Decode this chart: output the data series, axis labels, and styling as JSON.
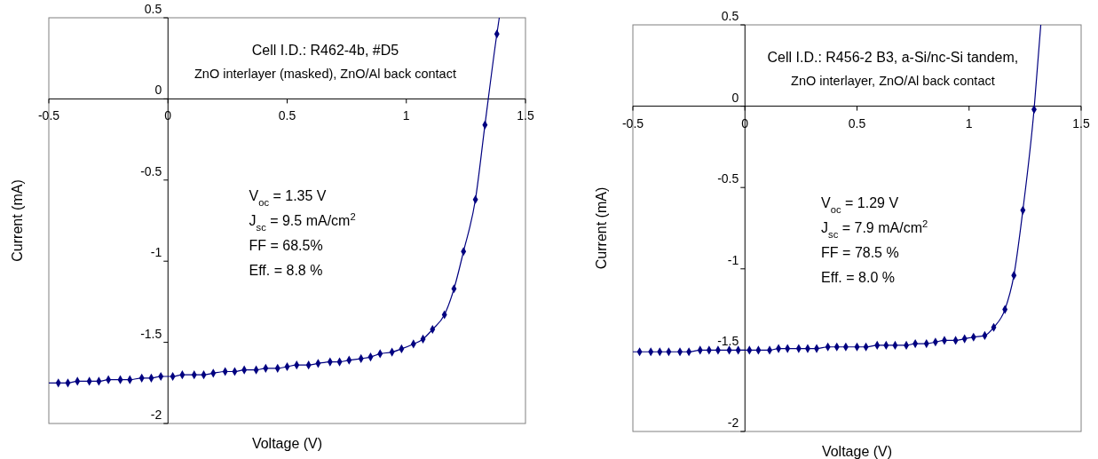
{
  "chart_data": [
    {
      "type": "scatter",
      "title": "Cell I.D.: R462-4b, #D5",
      "subtitle": "ZnO interlayer (masked), ZnO/Al back contact",
      "xlabel": "Voltage (V)",
      "ylabel": "Current (mA)",
      "annotations": [
        "V$_{oc}$ = 1.35 V",
        "J$_{sc}$ = 9.5 mA/cm$^{2}$",
        "FF = 68.5%",
        "Eff. = 8.8 %"
      ],
      "xlim": [
        -0.5,
        1.5
      ],
      "xticks": [
        -0.5,
        0,
        0.5,
        1,
        1.5
      ],
      "ylim": [
        -2,
        0.5
      ],
      "yticks": [
        -2,
        -1.5,
        -1,
        -0.5,
        0,
        0.5
      ],
      "grid": false,
      "series": [
        {
          "type": "line",
          "color": "#000080",
          "marker": "none",
          "x": [
            -0.5,
            -0.46,
            -0.42,
            -0.38,
            -0.33,
            -0.29,
            -0.25,
            -0.2,
            -0.16,
            -0.11,
            -0.07,
            -0.03,
            0.02,
            0.06,
            0.11,
            0.15,
            0.19,
            0.24,
            0.28,
            0.32,
            0.37,
            0.41,
            0.46,
            0.5,
            0.54,
            0.59,
            0.63,
            0.68,
            0.72,
            0.76,
            0.81,
            0.85,
            0.89,
            0.94,
            0.98,
            1.03,
            1.07,
            1.11,
            1.16,
            1.2,
            1.24,
            1.29,
            1.33,
            1.38,
            1.39
          ],
          "values": [
            -1.75,
            -1.75,
            -1.75,
            -1.74,
            -1.74,
            -1.74,
            -1.73,
            -1.73,
            -1.73,
            -1.72,
            -1.72,
            -1.71,
            -1.71,
            -1.7,
            -1.7,
            -1.7,
            -1.69,
            -1.68,
            -1.68,
            -1.67,
            -1.67,
            -1.66,
            -1.66,
            -1.65,
            -1.64,
            -1.64,
            -1.63,
            -1.62,
            -1.62,
            -1.61,
            -1.6,
            -1.59,
            -1.57,
            -1.56,
            -1.54,
            -1.51,
            -1.48,
            -1.42,
            -1.33,
            -1.17,
            -0.94,
            -0.62,
            -0.16,
            0.4,
            0.5
          ]
        },
        {
          "type": "scatter",
          "color": "#000080",
          "marker": "diamond",
          "x": [
            -0.46,
            -0.42,
            -0.38,
            -0.33,
            -0.29,
            -0.25,
            -0.2,
            -0.16,
            -0.11,
            -0.07,
            -0.03,
            0.02,
            0.06,
            0.11,
            0.15,
            0.19,
            0.24,
            0.28,
            0.32,
            0.37,
            0.41,
            0.46,
            0.5,
            0.54,
            0.59,
            0.63,
            0.68,
            0.72,
            0.76,
            0.81,
            0.85,
            0.89,
            0.94,
            0.98,
            1.03,
            1.07,
            1.11,
            1.16,
            1.2,
            1.24,
            1.29,
            1.33,
            1.38
          ],
          "values": [
            -1.75,
            -1.75,
            -1.74,
            -1.74,
            -1.74,
            -1.73,
            -1.73,
            -1.73,
            -1.72,
            -1.72,
            -1.71,
            -1.71,
            -1.7,
            -1.7,
            -1.7,
            -1.69,
            -1.68,
            -1.68,
            -1.67,
            -1.67,
            -1.66,
            -1.66,
            -1.65,
            -1.64,
            -1.64,
            -1.63,
            -1.62,
            -1.62,
            -1.61,
            -1.6,
            -1.59,
            -1.57,
            -1.56,
            -1.54,
            -1.51,
            -1.48,
            -1.42,
            -1.33,
            -1.17,
            -0.94,
            -0.62,
            -0.16,
            0.4
          ]
        }
      ]
    },
    {
      "type": "scatter",
      "title": "Cell I.D.: R456-2 B3, a-Si/nc-Si tandem,",
      "subtitle": "ZnO interlayer, ZnO/Al back contact",
      "xlabel": "Voltage (V)",
      "ylabel": "Current (mA)",
      "annotations": [
        "V$_{oc}$ = 1.29 V",
        "J$_{sc}$ = 7.9 mA/cm$^{2}$",
        "FF = 78.5 %",
        "Eff. = 8.0 %"
      ],
      "xlim": [
        -0.5,
        1.5
      ],
      "xticks": [
        -0.5,
        0,
        0.5,
        1,
        1.5
      ],
      "ylim": [
        -2,
        0.5
      ],
      "yticks": [
        -2,
        -1.5,
        -1,
        -0.5,
        0,
        0.5
      ],
      "grid": false,
      "series": [
        {
          "type": "line",
          "color": "#000080",
          "marker": "none",
          "x": [
            -0.5,
            -0.47,
            -0.42,
            -0.38,
            -0.34,
            -0.29,
            -0.25,
            -0.2,
            -0.16,
            -0.12,
            -0.07,
            -0.03,
            0.02,
            0.06,
            0.11,
            0.15,
            0.19,
            0.24,
            0.28,
            0.32,
            0.37,
            0.41,
            0.45,
            0.5,
            0.54,
            0.59,
            0.63,
            0.67,
            0.72,
            0.76,
            0.81,
            0.85,
            0.89,
            0.94,
            0.98,
            1.02,
            1.07,
            1.11,
            1.16,
            1.2,
            1.24,
            1.29,
            1.32
          ],
          "values": [
            -1.51,
            -1.51,
            -1.51,
            -1.51,
            -1.51,
            -1.51,
            -1.51,
            -1.5,
            -1.5,
            -1.5,
            -1.5,
            -1.5,
            -1.5,
            -1.5,
            -1.5,
            -1.49,
            -1.49,
            -1.49,
            -1.49,
            -1.49,
            -1.48,
            -1.48,
            -1.48,
            -1.48,
            -1.48,
            -1.47,
            -1.47,
            -1.47,
            -1.47,
            -1.46,
            -1.46,
            -1.45,
            -1.44,
            -1.44,
            -1.43,
            -1.42,
            -1.41,
            -1.36,
            -1.25,
            -1.04,
            -0.64,
            -0.02,
            0.5
          ]
        },
        {
          "type": "scatter",
          "color": "#000080",
          "marker": "diamond",
          "x": [
            -0.47,
            -0.42,
            -0.38,
            -0.34,
            -0.29,
            -0.25,
            -0.2,
            -0.16,
            -0.12,
            -0.07,
            -0.03,
            0.02,
            0.06,
            0.11,
            0.15,
            0.19,
            0.24,
            0.28,
            0.32,
            0.37,
            0.41,
            0.45,
            0.5,
            0.54,
            0.59,
            0.63,
            0.67,
            0.72,
            0.76,
            0.81,
            0.85,
            0.89,
            0.94,
            0.98,
            1.02,
            1.07,
            1.11,
            1.16,
            1.2,
            1.24,
            1.29
          ],
          "values": [
            -1.51,
            -1.51,
            -1.51,
            -1.51,
            -1.51,
            -1.51,
            -1.5,
            -1.5,
            -1.5,
            -1.5,
            -1.5,
            -1.5,
            -1.5,
            -1.5,
            -1.49,
            -1.49,
            -1.49,
            -1.49,
            -1.49,
            -1.48,
            -1.48,
            -1.48,
            -1.48,
            -1.48,
            -1.47,
            -1.47,
            -1.47,
            -1.47,
            -1.46,
            -1.46,
            -1.45,
            -1.44,
            -1.44,
            -1.43,
            -1.42,
            -1.41,
            -1.36,
            -1.25,
            -1.04,
            -0.64,
            -0.02
          ]
        }
      ]
    }
  ]
}
